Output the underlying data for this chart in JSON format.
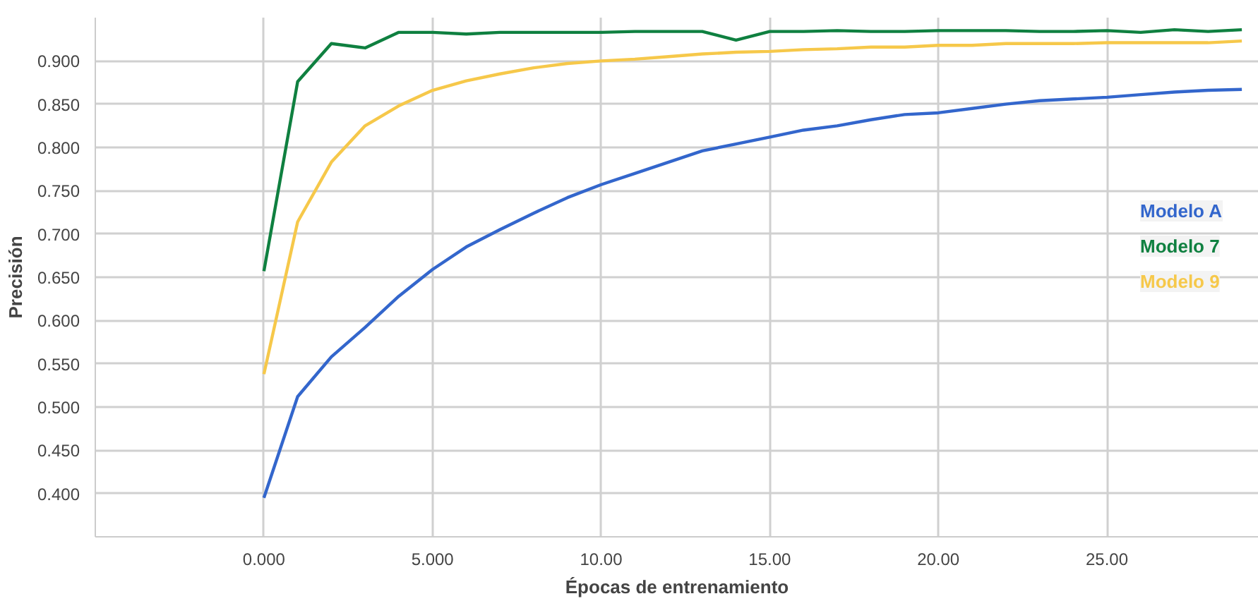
{
  "chart_data": {
    "type": "line",
    "xlabel": "Épocas de entrenamiento",
    "ylabel": "Precisión",
    "x": [
      0,
      1,
      2,
      3,
      4,
      5,
      6,
      7,
      8,
      9,
      10,
      11,
      12,
      13,
      14,
      15,
      16,
      17,
      18,
      19,
      20,
      21,
      22,
      23,
      24,
      25,
      26,
      27,
      28,
      29
    ],
    "series": [
      {
        "name": "Modelo A",
        "color": "#3366cc",
        "values": [
          0.395,
          0.512,
          0.558,
          0.592,
          0.628,
          0.659,
          0.685,
          0.705,
          0.724,
          0.742,
          0.757,
          0.77,
          0.783,
          0.796,
          0.804,
          0.812,
          0.82,
          0.825,
          0.832,
          0.838,
          0.84,
          0.845,
          0.85,
          0.854,
          0.856,
          0.858,
          0.861,
          0.864,
          0.866,
          0.867
        ]
      },
      {
        "name": "Modelo 7",
        "color": "#0f8040",
        "values": [
          0.657,
          0.876,
          0.92,
          0.915,
          0.933,
          0.933,
          0.931,
          0.933,
          0.933,
          0.933,
          0.933,
          0.934,
          0.934,
          0.934,
          0.924,
          0.934,
          0.934,
          0.935,
          0.934,
          0.934,
          0.935,
          0.935,
          0.935,
          0.934,
          0.934,
          0.935,
          0.933,
          0.936,
          0.934,
          0.936
        ]
      },
      {
        "name": "Modelo 9",
        "color": "#f6c84a",
        "values": [
          0.538,
          0.714,
          0.783,
          0.825,
          0.848,
          0.866,
          0.877,
          0.885,
          0.892,
          0.897,
          0.9,
          0.902,
          0.905,
          0.908,
          0.91,
          0.911,
          0.913,
          0.914,
          0.916,
          0.916,
          0.918,
          0.918,
          0.92,
          0.92,
          0.92,
          0.921,
          0.921,
          0.921,
          0.921,
          0.923
        ]
      }
    ],
    "xlim": [
      -5,
      29.5
    ],
    "ylim": [
      0.35,
      0.95
    ],
    "xticks": [
      {
        "value": 0,
        "label": "0.000"
      },
      {
        "value": 5,
        "label": "5.000"
      },
      {
        "value": 10,
        "label": "10.00"
      },
      {
        "value": 15,
        "label": "15.00"
      },
      {
        "value": 20,
        "label": "20.00"
      },
      {
        "value": 25,
        "label": "25.00"
      }
    ],
    "yticks": [
      {
        "value": 0.4,
        "label": "0.400"
      },
      {
        "value": 0.45,
        "label": "0.450"
      },
      {
        "value": 0.5,
        "label": "0.500"
      },
      {
        "value": 0.55,
        "label": "0.550"
      },
      {
        "value": 0.6,
        "label": "0.600"
      },
      {
        "value": 0.65,
        "label": "0.650"
      },
      {
        "value": 0.7,
        "label": "0.700"
      },
      {
        "value": 0.75,
        "label": "0.750"
      },
      {
        "value": 0.8,
        "label": "0.800"
      },
      {
        "value": 0.85,
        "label": "0.850"
      },
      {
        "value": 0.9,
        "label": "0.900"
      }
    ],
    "grid": true,
    "legend": "right",
    "line_style": "solid"
  }
}
